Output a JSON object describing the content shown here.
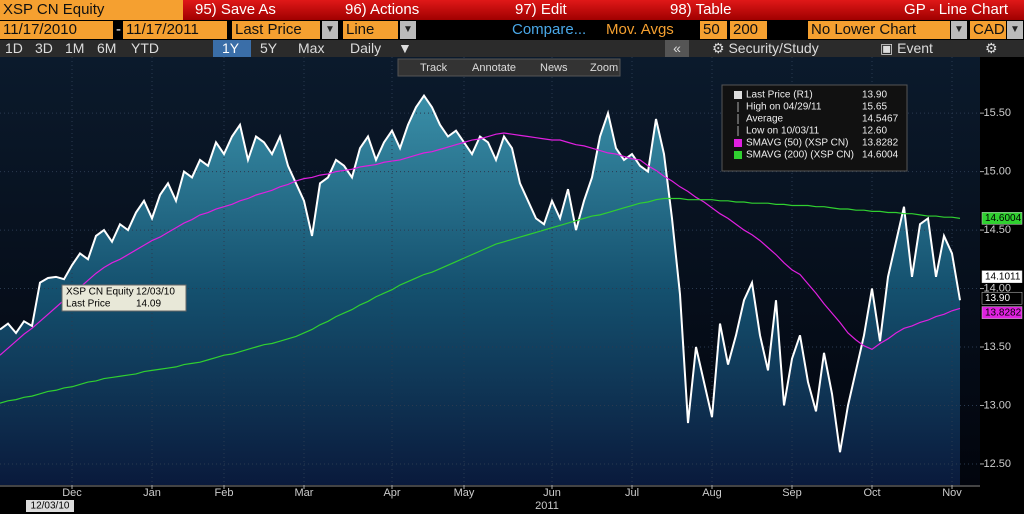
{
  "toolbar": {
    "ticker": "XSP CN Equity",
    "menu": [
      "95) Save As",
      "96) Actions",
      "97) Edit",
      "98) Table"
    ],
    "window_title": "GP - Line Chart",
    "start_date": "11/17/2010",
    "date_sep": "-",
    "end_date": "11/17/2011",
    "field": "Last Price",
    "style": "Line",
    "compare": "Compare...",
    "mov_avgs_label": "Mov. Avgs",
    "mov_avgs": [
      "50",
      "200"
    ],
    "lower_chart": "No Lower Chart",
    "currency": "CAD",
    "periods": [
      "1D",
      "3D",
      "1M",
      "6M",
      "YTD",
      "1Y",
      "5Y",
      "Max"
    ],
    "frequency": "Daily",
    "security_study": "Security/Study",
    "event": "Event",
    "chart_tools": [
      "Track",
      "Annotate",
      "News",
      "Zoom"
    ]
  },
  "chart_data": {
    "type": "line",
    "categories": [
      null,
      null,
      null,
      null,
      null,
      null,
      null,
      null,
      null,
      "Dec",
      null,
      null,
      null,
      null,
      null,
      null,
      null,
      null,
      null,
      "Jan",
      null,
      null,
      null,
      null,
      null,
      null,
      null,
      null,
      "Feb",
      null,
      null,
      null,
      null,
      null,
      null,
      null,
      null,
      null,
      "Mar",
      null,
      null,
      null,
      null,
      null,
      null,
      null,
      null,
      null,
      null,
      "Apr",
      null,
      null,
      null,
      null,
      null,
      null,
      null,
      null,
      "May",
      null,
      null,
      null,
      null,
      null,
      null,
      null,
      null,
      null,
      null,
      "Jun",
      null,
      null,
      null,
      null,
      null,
      null,
      null,
      null,
      null,
      "Jul",
      null,
      null,
      null,
      null,
      null,
      null,
      null,
      null,
      null,
      "Aug",
      null,
      null,
      null,
      null,
      null,
      null,
      null,
      null,
      null,
      "Sep",
      null,
      null,
      null,
      null,
      null,
      null,
      null,
      null,
      null,
      "Oct",
      null,
      null,
      null,
      null,
      null,
      null,
      null,
      null,
      null,
      "Nov",
      null
    ],
    "series": [
      {
        "name": "Last Price (R1)",
        "color": "#ffffff",
        "legend_value": "13.90",
        "values": [
          13.65,
          13.7,
          13.62,
          13.72,
          13.68,
          14.05,
          14.09,
          14.1,
          14.08,
          14.2,
          14.3,
          14.25,
          14.45,
          14.5,
          14.4,
          14.55,
          14.5,
          14.65,
          14.75,
          14.6,
          14.8,
          14.9,
          14.75,
          15.0,
          14.95,
          15.1,
          15.05,
          15.25,
          15.15,
          15.3,
          15.4,
          15.1,
          15.3,
          15.25,
          15.15,
          15.3,
          15.05,
          14.9,
          14.75,
          14.45,
          14.9,
          14.95,
          15.1,
          15.05,
          14.95,
          15.2,
          15.3,
          15.1,
          15.25,
          15.35,
          15.2,
          15.4,
          15.55,
          15.65,
          15.55,
          15.4,
          15.3,
          15.35,
          15.25,
          15.15,
          15.3,
          15.25,
          15.1,
          15.3,
          15.2,
          14.9,
          14.75,
          14.6,
          14.55,
          14.75,
          14.6,
          14.85,
          14.5,
          14.75,
          14.95,
          15.3,
          15.5,
          15.2,
          15.1,
          15.15,
          15.05,
          15.0,
          15.45,
          15.15,
          14.6,
          13.95,
          12.85,
          13.5,
          13.2,
          12.9,
          13.7,
          13.35,
          13.6,
          13.9,
          14.05,
          13.6,
          13.3,
          13.9,
          13.0,
          13.4,
          13.6,
          13.2,
          12.95,
          13.45,
          13.1,
          12.6,
          13.0,
          13.3,
          13.6,
          14.0,
          13.55,
          14.1,
          14.4,
          14.7,
          14.1,
          14.55,
          14.6,
          14.1,
          14.45,
          14.3,
          13.9
        ]
      },
      {
        "name": "SMAVG (50) (XSP CN)",
        "color": "#e020e0",
        "legend_value": "13.8282",
        "values": [
          13.43,
          13.49,
          13.55,
          13.61,
          13.66,
          13.72,
          13.78,
          13.84,
          13.9,
          13.96,
          14.01,
          14.07,
          14.13,
          14.18,
          14.22,
          14.25,
          14.29,
          14.33,
          14.37,
          14.41,
          14.44,
          14.48,
          14.52,
          14.56,
          14.59,
          14.63,
          14.65,
          14.68,
          14.7,
          14.72,
          14.75,
          14.77,
          14.8,
          14.82,
          14.84,
          14.87,
          14.89,
          14.92,
          14.94,
          14.95,
          14.97,
          14.98,
          15.0,
          15.01,
          15.02,
          15.04,
          15.05,
          15.06,
          15.08,
          15.09,
          15.1,
          15.12,
          15.14,
          15.16,
          15.17,
          15.19,
          15.21,
          15.23,
          15.25,
          15.27,
          15.28,
          15.3,
          15.32,
          15.33,
          15.32,
          15.31,
          15.3,
          15.29,
          15.28,
          15.27,
          15.27,
          15.25,
          15.23,
          15.22,
          15.2,
          15.18,
          15.16,
          15.15,
          15.13,
          15.11,
          15.1,
          15.05,
          15.01,
          14.96,
          14.92,
          14.87,
          14.83,
          14.78,
          14.74,
          14.69,
          14.64,
          14.6,
          14.55,
          14.5,
          14.46,
          14.41,
          14.35,
          14.29,
          14.22,
          14.16,
          14.12,
          14.04,
          13.96,
          13.87,
          13.79,
          13.71,
          13.62,
          13.56,
          13.51,
          13.48,
          13.53,
          13.57,
          13.62,
          13.66,
          13.68,
          13.71,
          13.73,
          13.76,
          13.78,
          13.81,
          13.83
        ]
      },
      {
        "name": "SMAVG (200) (XSP CN)",
        "color": "#30d030",
        "legend_value": "14.6004",
        "values": [
          13.02,
          13.04,
          13.05,
          13.07,
          13.08,
          13.1,
          13.12,
          13.13,
          13.15,
          13.16,
          13.18,
          13.2,
          13.21,
          13.23,
          13.24,
          13.25,
          13.26,
          13.27,
          13.29,
          13.3,
          13.31,
          13.32,
          13.33,
          13.35,
          13.36,
          13.37,
          13.39,
          13.41,
          13.43,
          13.44,
          13.46,
          13.48,
          13.5,
          13.52,
          13.53,
          13.55,
          13.57,
          13.59,
          13.62,
          13.65,
          13.69,
          13.72,
          13.76,
          13.79,
          13.82,
          13.86,
          13.89,
          13.93,
          13.96,
          13.99,
          14.03,
          14.06,
          14.09,
          14.12,
          14.14,
          14.17,
          14.2,
          14.23,
          14.26,
          14.29,
          14.32,
          14.35,
          14.38,
          14.4,
          14.42,
          14.44,
          14.46,
          14.48,
          14.5,
          14.52,
          14.54,
          14.56,
          14.58,
          14.6,
          14.62,
          14.63,
          14.65,
          14.67,
          14.69,
          14.71,
          14.73,
          14.74,
          14.76,
          14.77,
          14.77,
          14.77,
          14.76,
          14.76,
          14.76,
          14.76,
          14.75,
          14.75,
          14.74,
          14.74,
          14.73,
          14.73,
          14.73,
          14.72,
          14.72,
          14.71,
          14.71,
          14.71,
          14.7,
          14.7,
          14.69,
          14.68,
          14.68,
          14.67,
          14.67,
          14.66,
          14.66,
          14.65,
          14.65,
          14.64,
          14.64,
          14.63,
          14.62,
          14.62,
          14.61,
          14.61,
          14.6
        ]
      }
    ],
    "legend_stats": [
      {
        "label": "High on 04/29/11",
        "value": "15.65"
      },
      {
        "label": "Average",
        "value": "14.5467"
      },
      {
        "label": "Low on 10/03/11",
        "value": "12.60"
      }
    ],
    "tooltip": {
      "title": "XSP CN Equity",
      "date": "12/03/10",
      "label": "Last Price",
      "value": "14.09"
    },
    "ylim": [
      12.32,
      15.98
    ],
    "yticks": [
      {
        "value": 12.5,
        "label": "12.50"
      },
      {
        "value": 13,
        "label": "13.00"
      },
      {
        "value": 13.5,
        "label": "13.50"
      },
      {
        "value": 14,
        "label": "14.00"
      },
      {
        "value": 14.5,
        "label": "14.50"
      },
      {
        "value": 15,
        "label": "15.00"
      },
      {
        "value": 15.5,
        "label": "15.50"
      }
    ],
    "end_tags": [
      14.6004,
      14.1011,
      {
        "value": 13.9,
        "label": "13.90"
      },
      13.8282
    ],
    "grid": true,
    "cursor_date": "12/03/10",
    "year_label": "2011"
  }
}
